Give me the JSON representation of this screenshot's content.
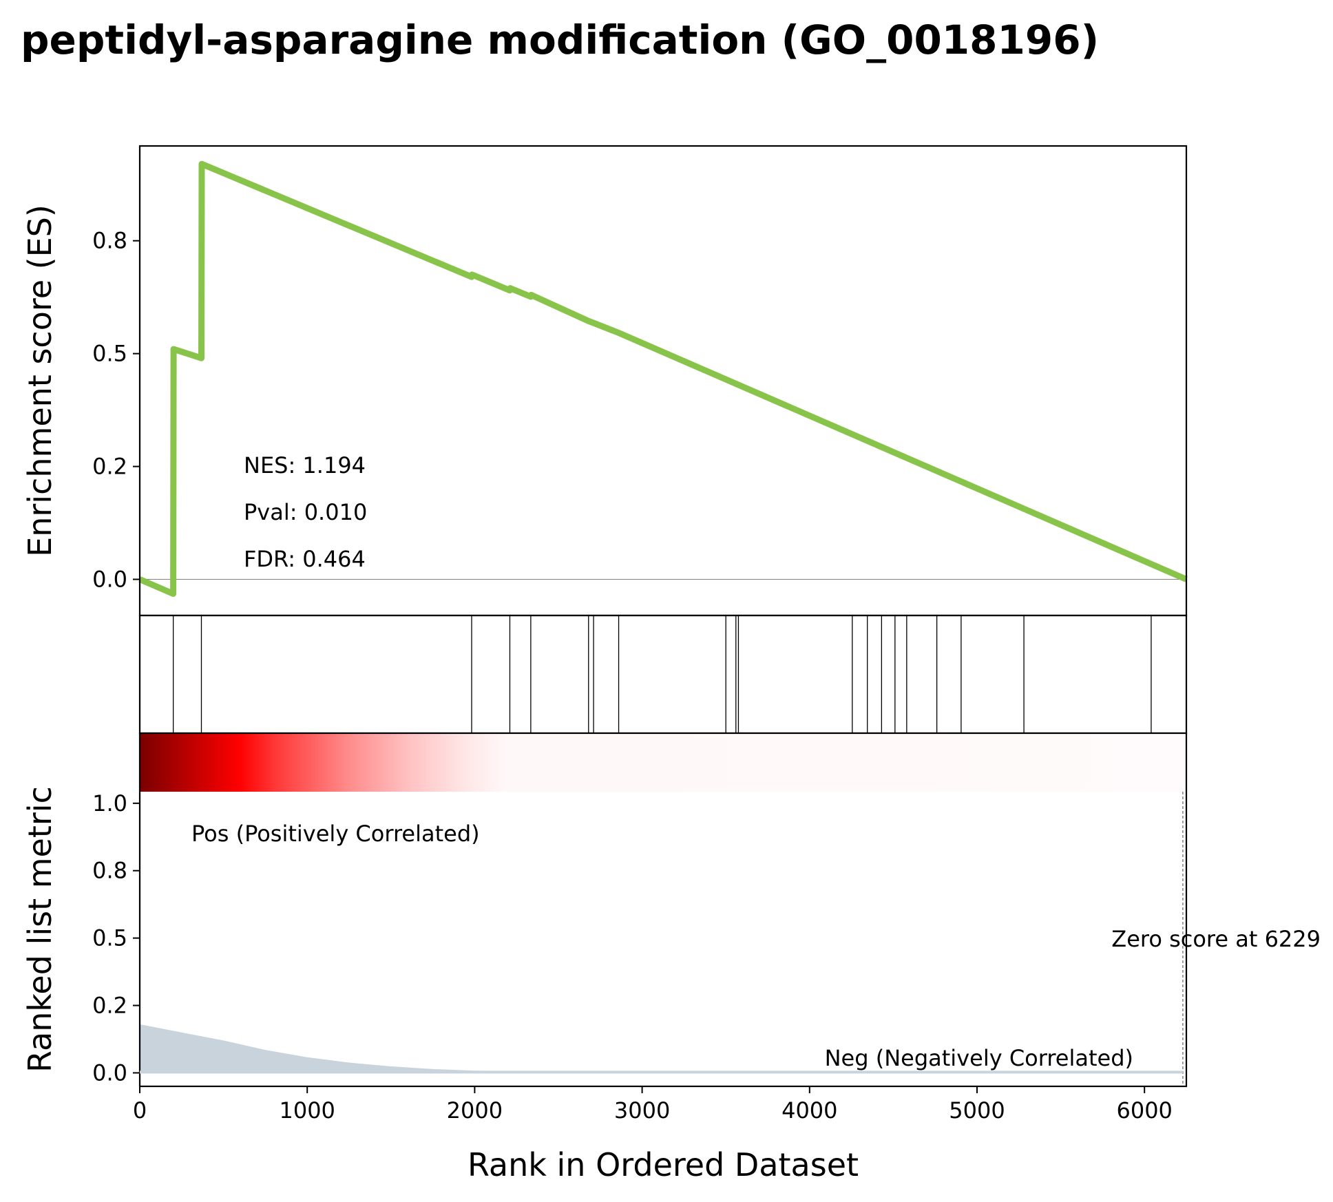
{
  "chart_data": {
    "type": "line",
    "title": "peptidyl-asparagine modification (GO_0018196)",
    "xlabel": "Rank in Ordered Dataset",
    "xlim": [
      0,
      6250
    ],
    "xticks": [
      "0",
      "1000",
      "2000",
      "3000",
      "4000",
      "5000",
      "6000"
    ],
    "es_panel": {
      "ylabel": "Enrichment score (ES)",
      "ylim": [
        -0.08,
        0.96
      ],
      "yticks": [
        "0.0",
        "0.2",
        "0.5",
        "0.8"
      ],
      "ytick_values": [
        0.0,
        0.25,
        0.5,
        0.75
      ],
      "line_color": "#88c34a",
      "series": [
        {
          "x": [
            0,
            200,
            202,
            368,
            370,
            1982,
            1984,
            2210,
            2212,
            2335,
            2337,
            2680,
            2710,
            2860,
            6250
          ],
          "y": [
            0.0,
            -0.032,
            0.51,
            0.49,
            0.92,
            0.67,
            0.675,
            0.64,
            0.645,
            0.626,
            0.63,
            0.572,
            0.568,
            0.546,
            0.0
          ]
        }
      ],
      "stats": {
        "nes": "NES: 1.194",
        "pval": "Pval: 0.010",
        "fdr": "FDR: 0.464"
      }
    },
    "hit_positions": [
      200,
      368,
      1982,
      2210,
      2335,
      2680,
      2710,
      2860,
      3500,
      3560,
      3575,
      4255,
      4345,
      4430,
      4510,
      4580,
      4760,
      4905,
      5280,
      6040
    ],
    "metric_panel": {
      "ylabel": "Ranked list metric",
      "ylim": [
        -0.05,
        1.26
      ],
      "yticks": [
        "0.0",
        "0.2",
        "0.5",
        "0.8",
        "1.0"
      ],
      "ytick_values": [
        0.0,
        0.25,
        0.5,
        0.75,
        1.0
      ],
      "fill_color": "#c8d3dc",
      "x": [
        0,
        250,
        500,
        750,
        1000,
        1250,
        1500,
        1750,
        2000,
        2500,
        3000,
        4000,
        5000,
        6000,
        6229
      ],
      "y": [
        0.18,
        0.15,
        0.12,
        0.085,
        0.058,
        0.038,
        0.024,
        0.014,
        0.008,
        0.005,
        0.004,
        0.003,
        0.002,
        0.001,
        0.0
      ],
      "pos_label": "Pos (Positively Correlated)",
      "pos_color": "#ff0000",
      "neg_label": "Neg (Negatively Correlated)",
      "neg_color": "#0000ff",
      "zero_label": "Zero score at 6229",
      "zero_score_x": 6229
    },
    "grid": false,
    "legend": "none"
  }
}
